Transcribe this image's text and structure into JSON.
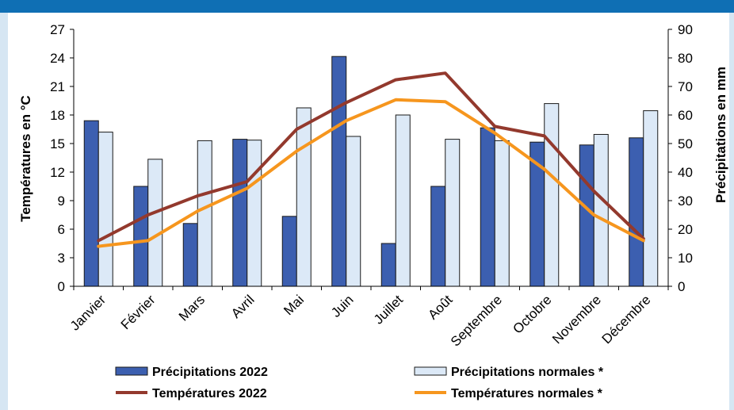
{
  "chart_data": {
    "type": "bar+line",
    "categories": [
      "Janvier",
      "Février",
      "Mars",
      "Avril",
      "Mai",
      "Juin",
      "Juillet",
      "Août",
      "Septembre",
      "Octobre",
      "Novembre",
      "Décembre"
    ],
    "y_left": {
      "label": "Températures en °C",
      "range": [
        0,
        27
      ],
      "ticks": [
        0,
        3,
        6,
        9,
        12,
        15,
        18,
        21,
        24,
        27
      ]
    },
    "y_right": {
      "label": "Précipitations en mm",
      "range": [
        0,
        90
      ],
      "ticks": [
        0,
        10,
        20,
        30,
        40,
        50,
        60,
        70,
        80,
        90
      ]
    },
    "series": [
      {
        "name": "Précipitations 2022",
        "kind": "bar",
        "axis": "right",
        "color": "#3c5fb0",
        "values": [
          58,
          35,
          22,
          51.5,
          24.5,
          80.5,
          15,
          35,
          55.5,
          50.5,
          49.5,
          52
        ]
      },
      {
        "name": "Précipitations normales *",
        "kind": "bar",
        "axis": "right",
        "color": "#dce9f7",
        "values": [
          54,
          44.5,
          51,
          51.2,
          62.5,
          52.5,
          60,
          51.5,
          51,
          64,
          53.2,
          61.5
        ]
      },
      {
        "name": "Températures 2022",
        "kind": "line",
        "axis": "left",
        "color": "#93392d",
        "values": [
          4.8,
          7.5,
          9.5,
          11,
          16.5,
          19.3,
          21.7,
          22.4,
          16.8,
          15.8,
          10,
          5
        ]
      },
      {
        "name": "Températures normales *",
        "kind": "line",
        "axis": "left",
        "color": "#f6961e",
        "values": [
          4.2,
          4.8,
          7.9,
          10.3,
          14.2,
          17.4,
          19.6,
          19.4,
          16.1,
          12.3,
          7.5,
          4.8
        ]
      }
    ],
    "grid": false,
    "legend_position": "bottom"
  }
}
